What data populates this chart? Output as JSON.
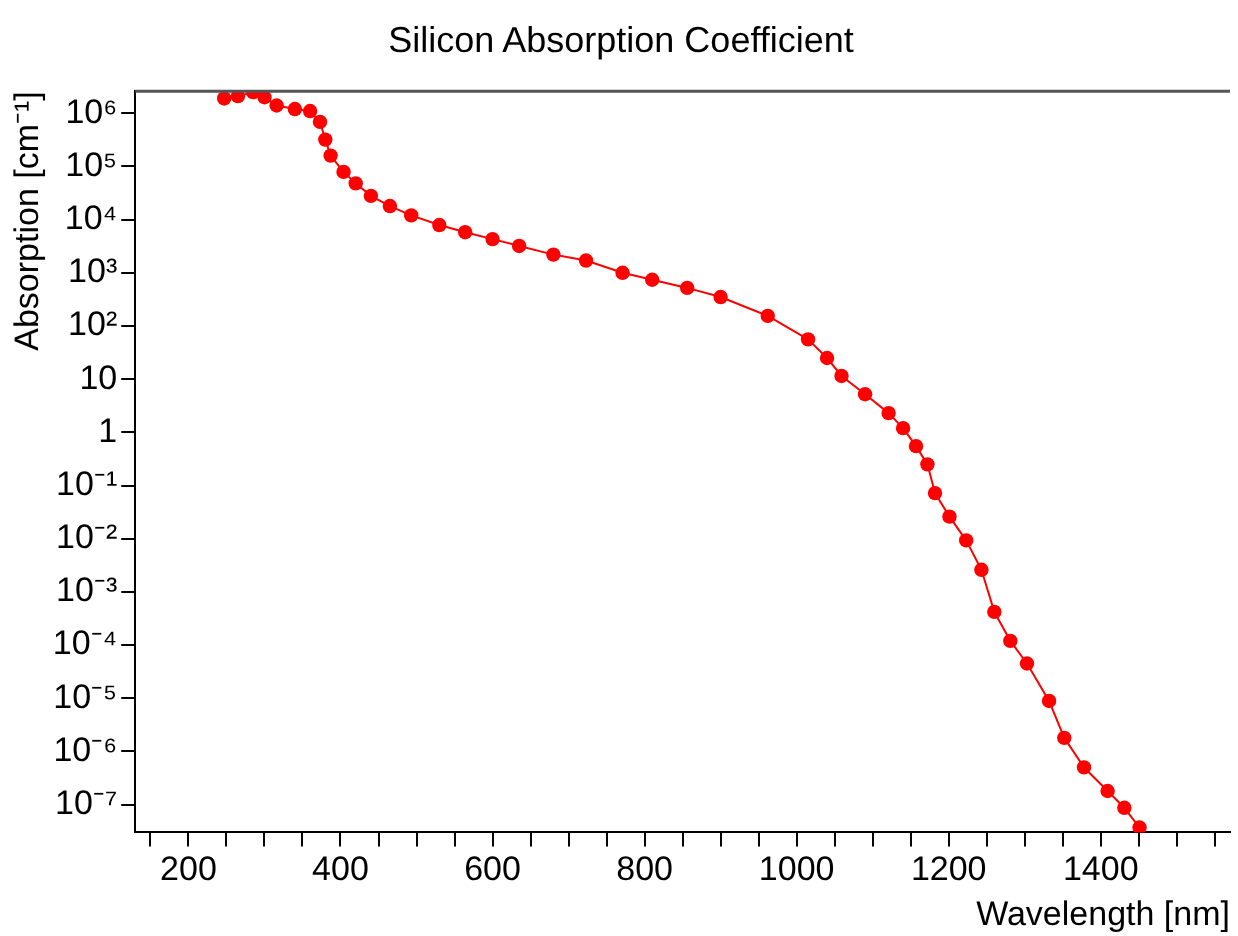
{
  "chart_data": {
    "type": "line",
    "title": "Silicon Absorption Coefficient",
    "xlabel": "Wavelength [nm]",
    "ylabel": "Absorption [cm⁻¹]",
    "log": "y",
    "grid": false,
    "legend": false,
    "marker": "circle",
    "line_style": "solid",
    "xlim": [
      130,
      1570
    ],
    "xticks": [
      {
        "value": 150,
        "label": null
      },
      200,
      {
        "value": 250,
        "label": null
      },
      {
        "value": 300,
        "label": null
      },
      {
        "value": 350,
        "label": null
      },
      400,
      {
        "value": 450,
        "label": null
      },
      {
        "value": 500,
        "label": null
      },
      {
        "value": 550,
        "label": null
      },
      600,
      {
        "value": 650,
        "label": null
      },
      {
        "value": 700,
        "label": null
      },
      {
        "value": 750,
        "label": null
      },
      800,
      {
        "value": 850,
        "label": null
      },
      {
        "value": 900,
        "label": null
      },
      {
        "value": 950,
        "label": null
      },
      1000,
      {
        "value": 1050,
        "label": null
      },
      {
        "value": 1100,
        "label": null
      },
      {
        "value": 1150,
        "label": null
      },
      1200,
      {
        "value": 1250,
        "label": null
      },
      {
        "value": 1300,
        "label": null
      },
      {
        "value": 1350,
        "label": null
      },
      1400,
      {
        "value": 1450,
        "label": null
      },
      {
        "value": 1500,
        "label": null
      },
      {
        "value": 1550,
        "label": null
      }
    ],
    "ylim": [
      3e-08,
      2600000.0
    ],
    "yticks": [
      {
        "value": 1e-07,
        "label": "10⁻⁷"
      },
      {
        "value": 1e-06,
        "label": "10⁻⁶"
      },
      {
        "value": 1e-05,
        "label": "10⁻⁵"
      },
      {
        "value": 0.0001,
        "label": "10⁻⁴"
      },
      {
        "value": 0.001,
        "label": "10⁻³"
      },
      {
        "value": 0.01,
        "label": "10⁻²"
      },
      {
        "value": 0.1,
        "label": "10⁻¹"
      },
      1,
      10,
      {
        "value": 100,
        "label": "10²"
      },
      {
        "value": 1000,
        "label": "10³"
      },
      {
        "value": 10000,
        "label": "10⁴"
      },
      {
        "value": 100000,
        "label": "10⁵"
      },
      {
        "value": 1000000,
        "label": "10⁶"
      }
    ],
    "x": [
      247,
      265,
      285,
      300,
      316,
      340,
      360,
      373,
      380,
      387,
      404,
      420,
      440,
      465,
      493,
      530,
      564,
      600,
      635,
      680,
      723,
      771,
      810,
      856,
      900,
      962,
      1015,
      1040,
      1059,
      1090,
      1121,
      1140,
      1157,
      1172,
      1182,
      1201,
      1223,
      1243,
      1260,
      1281,
      1303,
      1332,
      1352,
      1378,
      1409,
      1431,
      1451
    ],
    "series": [
      {
        "color": "#ff0000",
        "values": [
          1900000.0,
          2100000.0,
          2500000.0,
          2000000.0,
          1400000.0,
          1200000.0,
          1100000.0,
          690000.0,
          320000.0,
          160000.0,
          79000.0,
          48000.0,
          28000.0,
          18000.0,
          12000.0,
          7900.0,
          5800.0,
          4300.0,
          3200.0,
          2200.0,
          1700.0,
          1000.0,
          740,
          520,
          350,
          155,
          56,
          25,
          11.5,
          5.2,
          2.3,
          1.2,
          0.55,
          0.25,
          0.072,
          0.026,
          0.0093,
          0.0026,
          0.00042,
          0.00012,
          4.5e-05,
          8.9e-06,
          1.8e-06,
          5e-07,
          1.8e-07,
          8.7e-08,
          3.7e-08
        ]
      }
    ]
  }
}
